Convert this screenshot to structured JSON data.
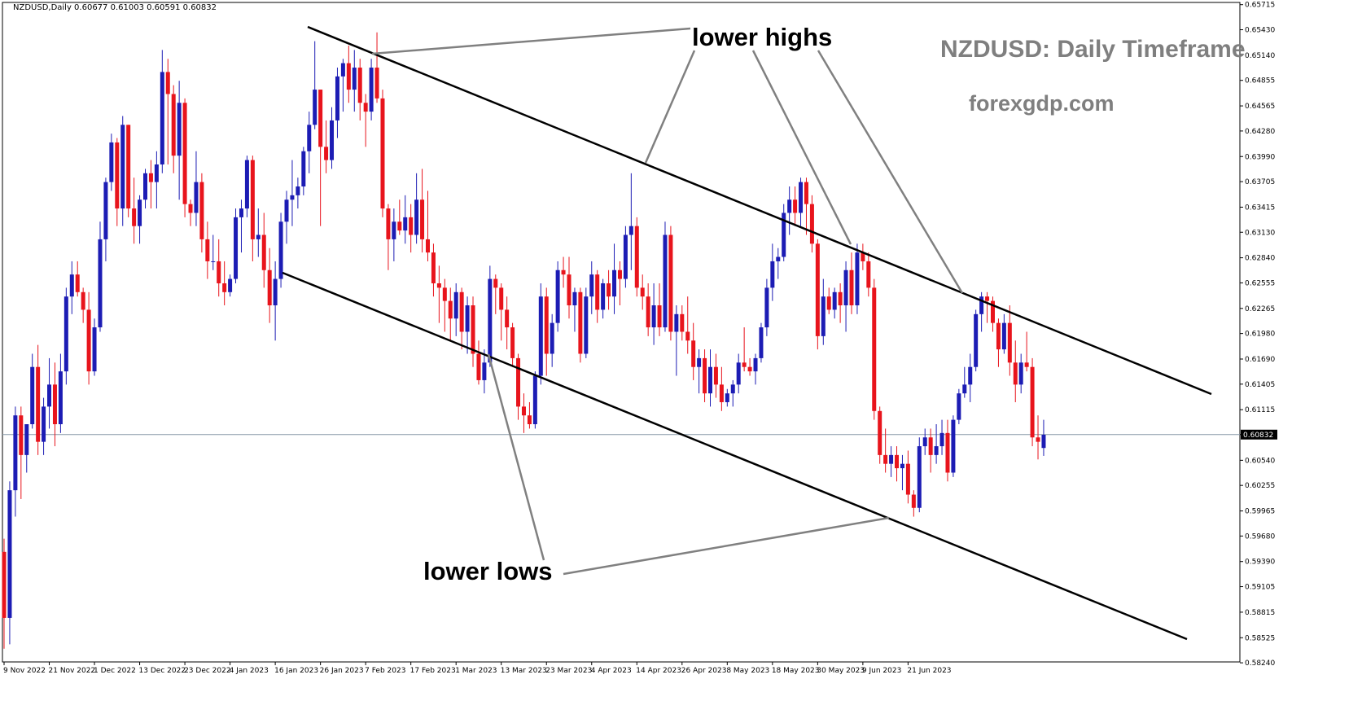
{
  "header": {
    "info_line": "NZDUSD,Daily  0.60677 0.61003 0.60591 0.60832",
    "title": "NZDUSD: Daily Timeframe",
    "site": "forexgdp.com"
  },
  "annotations": {
    "lower_highs": "lower highs",
    "lower_lows": "lower lows"
  },
  "colors": {
    "bull": "#1c1cb4",
    "bear": "#e8141c",
    "trendline": "#000000",
    "pointer": "#808080",
    "text_gray": "#7f7f7f"
  },
  "chart_data": {
    "type": "candlestick",
    "symbol": "NZDUSD",
    "timeframe": "Daily",
    "ylim": [
      0.5825,
      0.6574
    ],
    "y_ticks": [
      "0.65715",
      "0.65430",
      "0.65140",
      "0.64855",
      "0.64565",
      "0.64280",
      "0.63990",
      "0.63705",
      "0.63415",
      "0.63130",
      "0.62840",
      "0.62555",
      "0.62265",
      "0.61980",
      "0.61690",
      "0.61405",
      "0.61115",
      "0.60832",
      "0.60540",
      "0.60255",
      "0.59965",
      "0.59680",
      "0.59390",
      "0.59105",
      "0.58815",
      "0.58525",
      "0.58240"
    ],
    "x_ticks": [
      "9 Nov 2022",
      "21 Nov 2022",
      "1 Dec 2022",
      "13 Dec 2022",
      "23 Dec 2022",
      "4 Jan 2023",
      "16 Jan 2023",
      "26 Jan 2023",
      "7 Feb 2023",
      "17 Feb 2023",
      "1 Mar 2023",
      "13 Mar 2023",
      "23 Mar 2023",
      "4 Apr 2023",
      "14 Apr 2023",
      "26 Apr 2023",
      "8 May 2023",
      "18 May 2023",
      "30 May 2023",
      "9 Jun 2023",
      "21 Jun 2023"
    ],
    "current_price": "0.60832",
    "candles_ohlc": [
      [
        0.595,
        0.5965,
        0.584,
        0.5875
      ],
      [
        0.5875,
        0.603,
        0.5845,
        0.602
      ],
      [
        0.602,
        0.6115,
        0.599,
        0.6105
      ],
      [
        0.6105,
        0.6115,
        0.601,
        0.606
      ],
      [
        0.606,
        0.6095,
        0.604,
        0.6095
      ],
      [
        0.6095,
        0.6175,
        0.609,
        0.616
      ],
      [
        0.616,
        0.6185,
        0.606,
        0.6075
      ],
      [
        0.6075,
        0.6125,
        0.606,
        0.6115
      ],
      [
        0.6115,
        0.617,
        0.609,
        0.614
      ],
      [
        0.614,
        0.6165,
        0.607,
        0.6095
      ],
      [
        0.6095,
        0.6175,
        0.6085,
        0.6155
      ],
      [
        0.6155,
        0.625,
        0.614,
        0.624
      ],
      [
        0.624,
        0.628,
        0.622,
        0.6265
      ],
      [
        0.6265,
        0.628,
        0.624,
        0.6245
      ],
      [
        0.6245,
        0.625,
        0.621,
        0.6225
      ],
      [
        0.6225,
        0.6245,
        0.614,
        0.6155
      ],
      [
        0.6155,
        0.6215,
        0.615,
        0.6205
      ],
      [
        0.6205,
        0.6325,
        0.62,
        0.6305
      ],
      [
        0.6305,
        0.6375,
        0.628,
        0.637
      ],
      [
        0.637,
        0.6425,
        0.636,
        0.6415
      ],
      [
        0.6415,
        0.642,
        0.632,
        0.634
      ],
      [
        0.634,
        0.6445,
        0.632,
        0.6435
      ],
      [
        0.6435,
        0.6435,
        0.633,
        0.634
      ],
      [
        0.634,
        0.6375,
        0.63,
        0.632
      ],
      [
        0.632,
        0.6355,
        0.63,
        0.635
      ],
      [
        0.635,
        0.6385,
        0.634,
        0.638
      ],
      [
        0.638,
        0.6395,
        0.634,
        0.637
      ],
      [
        0.637,
        0.6405,
        0.634,
        0.639
      ],
      [
        0.639,
        0.652,
        0.638,
        0.6495
      ],
      [
        0.6495,
        0.651,
        0.639,
        0.647
      ],
      [
        0.647,
        0.648,
        0.638,
        0.64
      ],
      [
        0.64,
        0.6485,
        0.635,
        0.646
      ],
      [
        0.646,
        0.6465,
        0.633,
        0.6345
      ],
      [
        0.6345,
        0.635,
        0.632,
        0.6335
      ],
      [
        0.6335,
        0.6405,
        0.632,
        0.637
      ],
      [
        0.637,
        0.638,
        0.629,
        0.6305
      ],
      [
        0.6305,
        0.6325,
        0.626,
        0.628
      ],
      [
        0.628,
        0.631,
        0.627,
        0.628
      ],
      [
        0.628,
        0.6305,
        0.624,
        0.6255
      ],
      [
        0.6255,
        0.628,
        0.623,
        0.6245
      ],
      [
        0.6245,
        0.6265,
        0.624,
        0.626
      ],
      [
        0.626,
        0.634,
        0.6255,
        0.633
      ],
      [
        0.633,
        0.635,
        0.629,
        0.634
      ],
      [
        0.634,
        0.64,
        0.633,
        0.6395
      ],
      [
        0.6395,
        0.64,
        0.628,
        0.6305
      ],
      [
        0.6305,
        0.634,
        0.6285,
        0.631
      ],
      [
        0.631,
        0.6335,
        0.625,
        0.627
      ],
      [
        0.627,
        0.6295,
        0.621,
        0.623
      ],
      [
        0.623,
        0.628,
        0.619,
        0.626
      ],
      [
        0.626,
        0.6335,
        0.625,
        0.6325
      ],
      [
        0.6325,
        0.636,
        0.63,
        0.635
      ],
      [
        0.635,
        0.6395,
        0.632,
        0.6355
      ],
      [
        0.6355,
        0.6375,
        0.634,
        0.6365
      ],
      [
        0.6365,
        0.641,
        0.6355,
        0.6405
      ],
      [
        0.6405,
        0.645,
        0.638,
        0.6435
      ],
      [
        0.6435,
        0.653,
        0.643,
        0.6475
      ],
      [
        0.6475,
        0.6475,
        0.632,
        0.641
      ],
      [
        0.641,
        0.644,
        0.638,
        0.6395
      ],
      [
        0.6395,
        0.6455,
        0.6385,
        0.644
      ],
      [
        0.644,
        0.65,
        0.642,
        0.649
      ],
      [
        0.649,
        0.651,
        0.645,
        0.6505
      ],
      [
        0.6505,
        0.6525,
        0.646,
        0.6475
      ],
      [
        0.6475,
        0.652,
        0.645,
        0.65
      ],
      [
        0.65,
        0.651,
        0.644,
        0.646
      ],
      [
        0.646,
        0.647,
        0.641,
        0.645
      ],
      [
        0.645,
        0.651,
        0.644,
        0.65
      ],
      [
        0.65,
        0.654,
        0.646,
        0.6465
      ],
      [
        0.6465,
        0.6475,
        0.633,
        0.634
      ],
      [
        0.634,
        0.6345,
        0.627,
        0.6305
      ],
      [
        0.6305,
        0.634,
        0.628,
        0.6325
      ],
      [
        0.6325,
        0.635,
        0.631,
        0.6315
      ],
      [
        0.6315,
        0.6355,
        0.63,
        0.633
      ],
      [
        0.633,
        0.6345,
        0.629,
        0.631
      ],
      [
        0.631,
        0.638,
        0.63,
        0.635
      ],
      [
        0.635,
        0.6385,
        0.629,
        0.6305
      ],
      [
        0.6305,
        0.636,
        0.628,
        0.629
      ],
      [
        0.629,
        0.63,
        0.624,
        0.6255
      ],
      [
        0.6255,
        0.6275,
        0.621,
        0.625
      ],
      [
        0.625,
        0.626,
        0.62,
        0.6235
      ],
      [
        0.6235,
        0.625,
        0.619,
        0.6215
      ],
      [
        0.6215,
        0.6255,
        0.6195,
        0.6245
      ],
      [
        0.6245,
        0.625,
        0.618,
        0.62
      ],
      [
        0.62,
        0.624,
        0.6175,
        0.623
      ],
      [
        0.623,
        0.624,
        0.616,
        0.6175
      ],
      [
        0.6175,
        0.619,
        0.614,
        0.6145
      ],
      [
        0.6145,
        0.618,
        0.613,
        0.6165
      ],
      [
        0.6165,
        0.6275,
        0.616,
        0.626
      ],
      [
        0.626,
        0.6265,
        0.622,
        0.625
      ],
      [
        0.625,
        0.6255,
        0.619,
        0.6225
      ],
      [
        0.6225,
        0.624,
        0.618,
        0.6205
      ],
      [
        0.6205,
        0.621,
        0.616,
        0.617
      ],
      [
        0.617,
        0.6175,
        0.61,
        0.6115
      ],
      [
        0.6115,
        0.613,
        0.6085,
        0.6105
      ],
      [
        0.6105,
        0.612,
        0.609,
        0.6095
      ],
      [
        0.6095,
        0.6155,
        0.609,
        0.615
      ],
      [
        0.615,
        0.6255,
        0.614,
        0.624
      ],
      [
        0.624,
        0.625,
        0.615,
        0.6175
      ],
      [
        0.6175,
        0.622,
        0.616,
        0.621
      ],
      [
        0.621,
        0.628,
        0.62,
        0.627
      ],
      [
        0.627,
        0.6285,
        0.625,
        0.6265
      ],
      [
        0.6265,
        0.6285,
        0.6215,
        0.623
      ],
      [
        0.623,
        0.625,
        0.62,
        0.6245
      ],
      [
        0.6245,
        0.625,
        0.6165,
        0.6175
      ],
      [
        0.6175,
        0.625,
        0.617,
        0.624
      ],
      [
        0.624,
        0.628,
        0.622,
        0.6265
      ],
      [
        0.6265,
        0.627,
        0.621,
        0.6225
      ],
      [
        0.6225,
        0.626,
        0.6215,
        0.6255
      ],
      [
        0.6255,
        0.627,
        0.6225,
        0.624
      ],
      [
        0.624,
        0.63,
        0.622,
        0.627
      ],
      [
        0.627,
        0.628,
        0.623,
        0.626
      ],
      [
        0.626,
        0.632,
        0.625,
        0.631
      ],
      [
        0.631,
        0.638,
        0.627,
        0.632
      ],
      [
        0.632,
        0.633,
        0.624,
        0.625
      ],
      [
        0.625,
        0.6265,
        0.6225,
        0.624
      ],
      [
        0.624,
        0.6255,
        0.6195,
        0.6205
      ],
      [
        0.6205,
        0.6255,
        0.6185,
        0.623
      ],
      [
        0.623,
        0.6255,
        0.6195,
        0.6205
      ],
      [
        0.6205,
        0.6325,
        0.62,
        0.631
      ],
      [
        0.631,
        0.632,
        0.619,
        0.62
      ],
      [
        0.62,
        0.623,
        0.615,
        0.622
      ],
      [
        0.622,
        0.623,
        0.619,
        0.62
      ],
      [
        0.62,
        0.624,
        0.6175,
        0.619
      ],
      [
        0.619,
        0.621,
        0.6145,
        0.616
      ],
      [
        0.616,
        0.618,
        0.613,
        0.617
      ],
      [
        0.617,
        0.618,
        0.612,
        0.613
      ],
      [
        0.613,
        0.618,
        0.6115,
        0.616
      ],
      [
        0.616,
        0.6175,
        0.6125,
        0.614
      ],
      [
        0.614,
        0.616,
        0.611,
        0.612
      ],
      [
        0.612,
        0.6135,
        0.6115,
        0.613
      ],
      [
        0.613,
        0.6145,
        0.6115,
        0.614
      ],
      [
        0.614,
        0.6175,
        0.613,
        0.6165
      ],
      [
        0.6165,
        0.6205,
        0.6155,
        0.616
      ],
      [
        0.616,
        0.617,
        0.615,
        0.6155
      ],
      [
        0.6155,
        0.6175,
        0.614,
        0.617
      ],
      [
        0.617,
        0.621,
        0.6165,
        0.6205
      ],
      [
        0.6205,
        0.626,
        0.6195,
        0.625
      ],
      [
        0.625,
        0.63,
        0.6235,
        0.628
      ],
      [
        0.628,
        0.6295,
        0.626,
        0.6285
      ],
      [
        0.6285,
        0.6345,
        0.628,
        0.6335
      ],
      [
        0.6335,
        0.6365,
        0.631,
        0.635
      ],
      [
        0.635,
        0.6365,
        0.632,
        0.6335
      ],
      [
        0.6335,
        0.6375,
        0.632,
        0.637
      ],
      [
        0.637,
        0.6375,
        0.631,
        0.6345
      ],
      [
        0.6345,
        0.6355,
        0.629,
        0.63
      ],
      [
        0.63,
        0.6305,
        0.618,
        0.6195
      ],
      [
        0.6195,
        0.626,
        0.6185,
        0.624
      ],
      [
        0.624,
        0.625,
        0.622,
        0.6225
      ],
      [
        0.6225,
        0.625,
        0.6215,
        0.6245
      ],
      [
        0.6245,
        0.6255,
        0.621,
        0.623
      ],
      [
        0.623,
        0.628,
        0.62,
        0.627
      ],
      [
        0.627,
        0.629,
        0.622,
        0.623
      ],
      [
        0.623,
        0.63,
        0.622,
        0.629
      ],
      [
        0.629,
        0.63,
        0.627,
        0.628
      ],
      [
        0.628,
        0.629,
        0.624,
        0.625
      ],
      [
        0.625,
        0.626,
        0.61,
        0.611
      ],
      [
        0.611,
        0.6115,
        0.605,
        0.606
      ],
      [
        0.606,
        0.609,
        0.604,
        0.605
      ],
      [
        0.605,
        0.607,
        0.6035,
        0.606
      ],
      [
        0.606,
        0.607,
        0.603,
        0.6045
      ],
      [
        0.6045,
        0.606,
        0.602,
        0.605
      ],
      [
        0.605,
        0.6065,
        0.6005,
        0.6015
      ],
      [
        0.6015,
        0.602,
        0.599,
        0.6
      ],
      [
        0.6,
        0.608,
        0.5995,
        0.607
      ],
      [
        0.607,
        0.609,
        0.606,
        0.608
      ],
      [
        0.608,
        0.609,
        0.604,
        0.606
      ],
      [
        0.606,
        0.6095,
        0.605,
        0.607
      ],
      [
        0.607,
        0.61,
        0.606,
        0.6085
      ],
      [
        0.6085,
        0.61,
        0.603,
        0.604
      ],
      [
        0.604,
        0.6105,
        0.6035,
        0.61
      ],
      [
        0.61,
        0.6135,
        0.6095,
        0.613
      ],
      [
        0.613,
        0.616,
        0.6125,
        0.614
      ],
      [
        0.614,
        0.6175,
        0.612,
        0.616
      ],
      [
        0.616,
        0.6225,
        0.6155,
        0.622
      ],
      [
        0.622,
        0.6245,
        0.62,
        0.624
      ],
      [
        0.624,
        0.6245,
        0.621,
        0.6235
      ],
      [
        0.6235,
        0.624,
        0.62,
        0.621
      ],
      [
        0.621,
        0.6215,
        0.616,
        0.618
      ],
      [
        0.618,
        0.622,
        0.6175,
        0.621
      ],
      [
        0.621,
        0.623,
        0.615,
        0.6165
      ],
      [
        0.6165,
        0.619,
        0.612,
        0.614
      ],
      [
        0.614,
        0.6175,
        0.613,
        0.6165
      ],
      [
        0.6165,
        0.62,
        0.6155,
        0.616
      ],
      [
        0.616,
        0.617,
        0.607,
        0.608
      ],
      [
        0.608,
        0.6105,
        0.6055,
        0.6075
      ],
      [
        0.6068,
        0.61,
        0.6059,
        0.6083
      ]
    ]
  }
}
